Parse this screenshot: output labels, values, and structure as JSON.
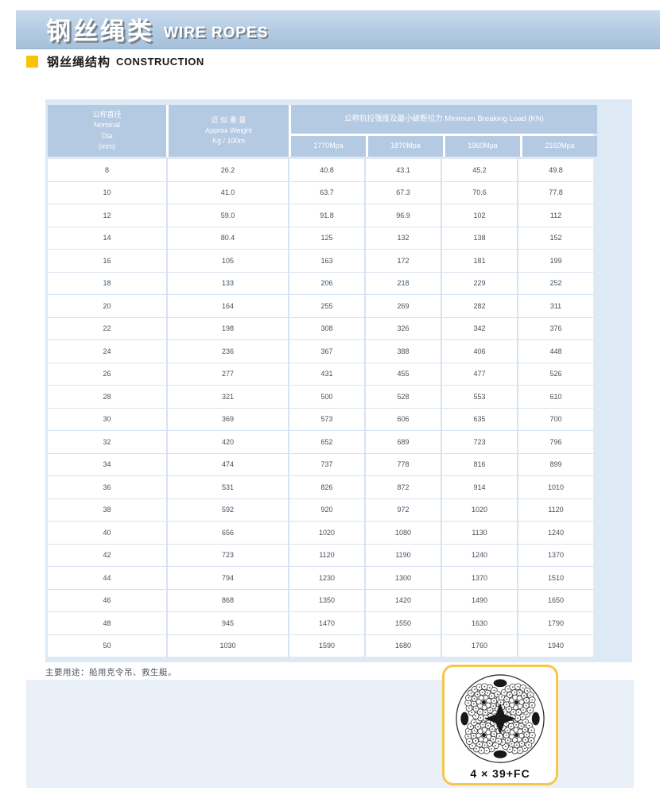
{
  "banner": {
    "title_zh": "钢丝绳类",
    "title_en": "WIRE ROPES"
  },
  "section": {
    "title_zh": "钢丝绳结构",
    "title_en": "CONSTRUCTION"
  },
  "table": {
    "headers": {
      "col1": {
        "line1": "公称直径",
        "line2": "Nominal",
        "line3": "Dia",
        "line4": "(mm)"
      },
      "col2": {
        "line1": "近 似 重 量",
        "line2": "Approx Weight",
        "line3": "Kg / 100m"
      },
      "col3_merged": "公称抗拉强度及最小破断拉力 Minimum Breaking Load (KN)",
      "sub": [
        "1770Mpa",
        "1870Mpa",
        "1960Mpa",
        "2160Mpa"
      ]
    },
    "rows": [
      [
        "8",
        "26.2",
        "40.8",
        "43.1",
        "45.2",
        "49.8"
      ],
      [
        "10",
        "41.0",
        "63.7",
        "67.3",
        "70.6",
        "77.8"
      ],
      [
        "12",
        "59.0",
        "91.8",
        "96.9",
        "102",
        "112"
      ],
      [
        "14",
        "80.4",
        "125",
        "132",
        "138",
        "152"
      ],
      [
        "16",
        "105",
        "163",
        "172",
        "181",
        "199"
      ],
      [
        "18",
        "133",
        "206",
        "218",
        "229",
        "252"
      ],
      [
        "20",
        "164",
        "255",
        "269",
        "282",
        "311"
      ],
      [
        "22",
        "198",
        "308",
        "326",
        "342",
        "376"
      ],
      [
        "24",
        "236",
        "367",
        "388",
        "406",
        "448"
      ],
      [
        "26",
        "277",
        "431",
        "455",
        "477",
        "526"
      ],
      [
        "28",
        "321",
        "500",
        "528",
        "553",
        "610"
      ],
      [
        "30",
        "369",
        "573",
        "606",
        "635",
        "700"
      ],
      [
        "32",
        "420",
        "652",
        "689",
        "723",
        "796"
      ],
      [
        "34",
        "474",
        "737",
        "778",
        "816",
        "899"
      ],
      [
        "36",
        "531",
        "826",
        "872",
        "914",
        "1010"
      ],
      [
        "38",
        "592",
        "920",
        "972",
        "1020",
        "1120"
      ],
      [
        "40",
        "656",
        "1020",
        "1080",
        "1130",
        "1240"
      ],
      [
        "42",
        "723",
        "1120",
        "1190",
        "1240",
        "1370"
      ],
      [
        "44",
        "794",
        "1230",
        "1300",
        "1370",
        "1510"
      ],
      [
        "46",
        "868",
        "1350",
        "1420",
        "1490",
        "1650"
      ],
      [
        "48",
        "945",
        "1470",
        "1550",
        "1630",
        "1790"
      ],
      [
        "50",
        "1030",
        "1590",
        "1680",
        "1760",
        "1940"
      ]
    ]
  },
  "footer": {
    "note": "主要用途：船用克令吊、救生艇。",
    "rope_label": "4 × 39+FC"
  },
  "colors": {
    "banner_blue": "#b3cbe2",
    "header_cell_blue": "#b4c9e2",
    "panel_blue": "#dde9f4",
    "footer_panel_blue": "#e9f0f8",
    "accent_yellow": "#f8c402",
    "card_border_yellow": "#f5c84c"
  }
}
